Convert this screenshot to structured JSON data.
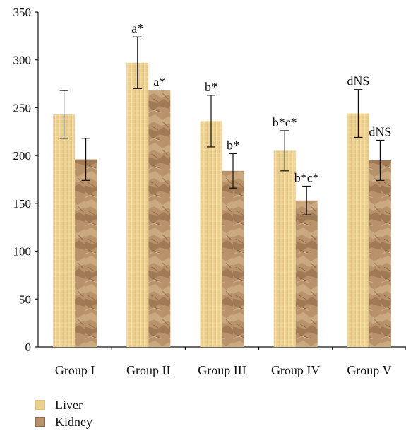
{
  "chart_data": {
    "type": "bar",
    "title": "",
    "xlabel": "",
    "ylabel": "",
    "categories": [
      "Group I",
      "Group II",
      "Group III",
      "Group IV",
      "Group V"
    ],
    "ylim": [
      0,
      350
    ],
    "yticks": [
      0,
      50,
      100,
      150,
      200,
      250,
      300,
      350
    ],
    "grid": false,
    "legend_position": "bottom-left",
    "series": [
      {
        "name": "Liver",
        "color": "#ecd08f",
        "texture": "paper",
        "values": [
          243,
          297,
          236,
          205,
          244
        ],
        "errors": [
          25,
          27,
          27,
          21,
          25
        ],
        "annotations": [
          "",
          "a*",
          "b*",
          "b*c*",
          "dNS"
        ]
      },
      {
        "name": "Kidney",
        "color": "#b8926a",
        "texture": "crumpled",
        "values": [
          196,
          268,
          184,
          153,
          195
        ],
        "errors": [
          22,
          0,
          18,
          15,
          21
        ],
        "annotations": [
          "",
          "a*",
          "b*",
          "b*c*",
          "dNS"
        ]
      }
    ]
  }
}
